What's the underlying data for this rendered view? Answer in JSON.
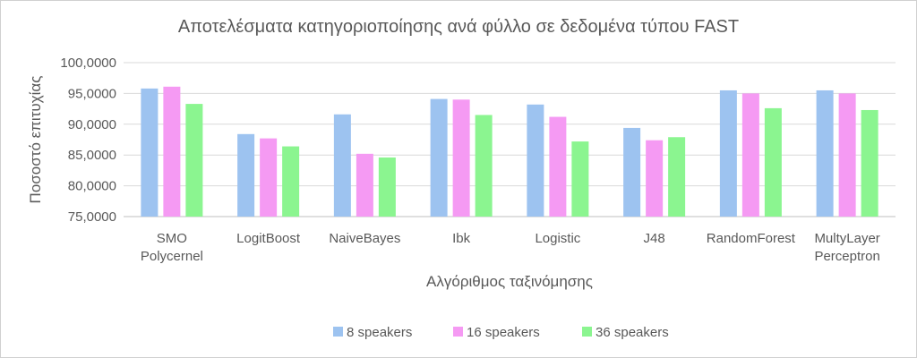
{
  "chart_data": {
    "type": "bar",
    "title": "Αποτελέσματα κατηγοριοποίησης ανά φύλλο σε δεδομένα τύπου FAST",
    "xlabel": "Αλγόριθμος ταξινόμησης",
    "ylabel": "Ποσοστό επιτυχίας",
    "ylim": [
      75,
      100
    ],
    "yticks": [
      "75,0000",
      "80,0000",
      "85,0000",
      "90,0000",
      "95,0000",
      "100,0000"
    ],
    "grid": true,
    "legend_position": "bottom",
    "categories": [
      [
        "SMO",
        "Polycernel"
      ],
      [
        "LogitBoost"
      ],
      [
        "NaiveBayes"
      ],
      [
        "Ibk"
      ],
      [
        "Logistic"
      ],
      [
        "J48"
      ],
      [
        "RandomForest"
      ],
      [
        "MultyLayer",
        "Perceptron"
      ]
    ],
    "series": [
      {
        "name": "8 speakers",
        "color": "#9dc3f0",
        "values": [
          95.8,
          88.4,
          91.6,
          94.1,
          93.2,
          89.4,
          95.5,
          95.5
        ]
      },
      {
        "name": "16 speakers",
        "color": "#f59af3",
        "values": [
          96.1,
          87.7,
          85.2,
          94.0,
          91.2,
          87.4,
          95.0,
          95.0
        ]
      },
      {
        "name": "36 speakers",
        "color": "#8bf590",
        "values": [
          93.3,
          86.4,
          84.6,
          91.5,
          87.2,
          87.9,
          92.6,
          92.3
        ]
      }
    ]
  }
}
